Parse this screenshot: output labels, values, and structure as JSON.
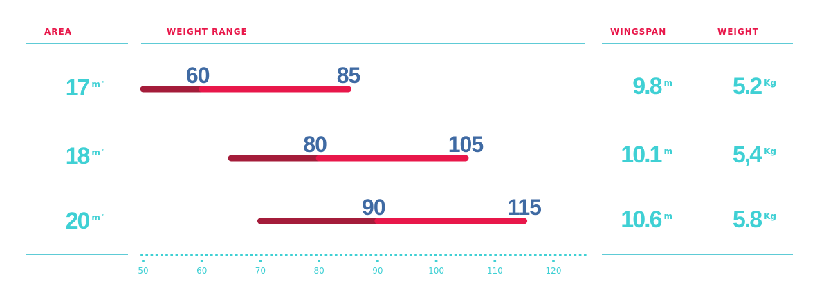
{
  "headers": {
    "area": "AREA",
    "weight_range": "WEIGHT RANGE",
    "wingspan": "WINGSPAN",
    "weight": "WEIGHT"
  },
  "rows": [
    {
      "area": "17",
      "area_unit": "m",
      "area_sup": "²",
      "wingspan": "9.8",
      "wingspan_unit": "m",
      "weight": "5.2",
      "weight_unit": "Kg"
    },
    {
      "area": "18",
      "area_unit": "m",
      "area_sup": "²",
      "wingspan": "10.1",
      "wingspan_unit": "m",
      "weight": "5,4",
      "weight_unit": "Kg"
    },
    {
      "area": "20",
      "area_unit": "m",
      "area_sup": "²",
      "wingspan": "10.6",
      "wingspan_unit": "m",
      "weight": "5.8",
      "weight_unit": "Kg"
    }
  ],
  "colors": {
    "accent": "#e8174a",
    "dark_bar": "#a41c3a",
    "bar": "#e8174a",
    "label_blue": "#3f6aa3",
    "teal": "#3fd0d4",
    "rule": "#5ecbd6"
  },
  "chart_data": {
    "type": "bar",
    "orientation": "horizontal-range",
    "title": "WEIGHT RANGE",
    "xlim": [
      50,
      120
    ],
    "xticks": [
      50,
      60,
      70,
      80,
      90,
      100,
      110,
      120
    ],
    "xlabel": "",
    "ylabel": "",
    "categories": [
      "17",
      "18",
      "20"
    ],
    "series": [
      {
        "start": 50,
        "mid": 60,
        "end": 85,
        "min_label": "60",
        "max_label": "85"
      },
      {
        "start": 65,
        "mid": 80,
        "end": 105,
        "min_label": "80",
        "max_label": "105"
      },
      {
        "start": 70,
        "mid": 90,
        "end": 115,
        "min_label": "90",
        "max_label": "115"
      }
    ],
    "grid": false
  }
}
